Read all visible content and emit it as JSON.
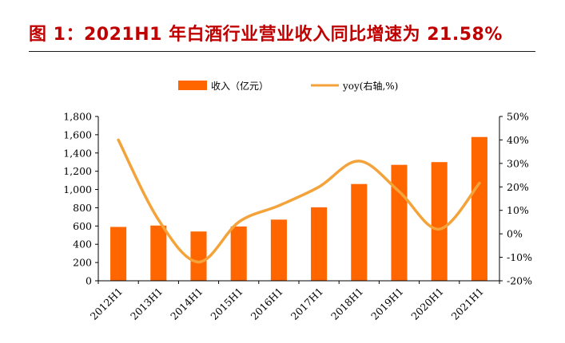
{
  "title": "图 1：2021H1 年白酒行业营业收入同比增速为 21.58%",
  "colors": {
    "title": "#c00000",
    "bar": "#ff6600",
    "line": "#f4a33a"
  },
  "chart_data": {
    "type": "bar",
    "categories": [
      "2012H1",
      "2013H1",
      "2014H1",
      "2015H1",
      "2016H1",
      "2017H1",
      "2018H1",
      "2019H1",
      "2020H1",
      "2021H1"
    ],
    "series": [
      {
        "name": "收入（亿元）",
        "kind": "bar",
        "axis": "left",
        "values": [
          590,
          605,
          540,
          595,
          670,
          805,
          1060,
          1270,
          1300,
          1575
        ]
      },
      {
        "name": "yoy(右轴,%)",
        "kind": "line",
        "axis": "right",
        "values": [
          40,
          6,
          -12,
          5,
          12,
          20,
          31,
          18,
          2,
          21.58
        ]
      }
    ],
    "left_axis": {
      "min": 0,
      "max": 1800,
      "step": 200,
      "ticks": [
        "0",
        "200",
        "400",
        "600",
        "800",
        "1,000",
        "1,200",
        "1,400",
        "1,600",
        "1,800"
      ]
    },
    "right_axis": {
      "min": -20,
      "max": 50,
      "step": 10,
      "ticks": [
        "-20%",
        "-10%",
        "0%",
        "10%",
        "20%",
        "30%",
        "40%",
        "50%"
      ]
    },
    "legend_position": "top-center",
    "grid": false
  }
}
